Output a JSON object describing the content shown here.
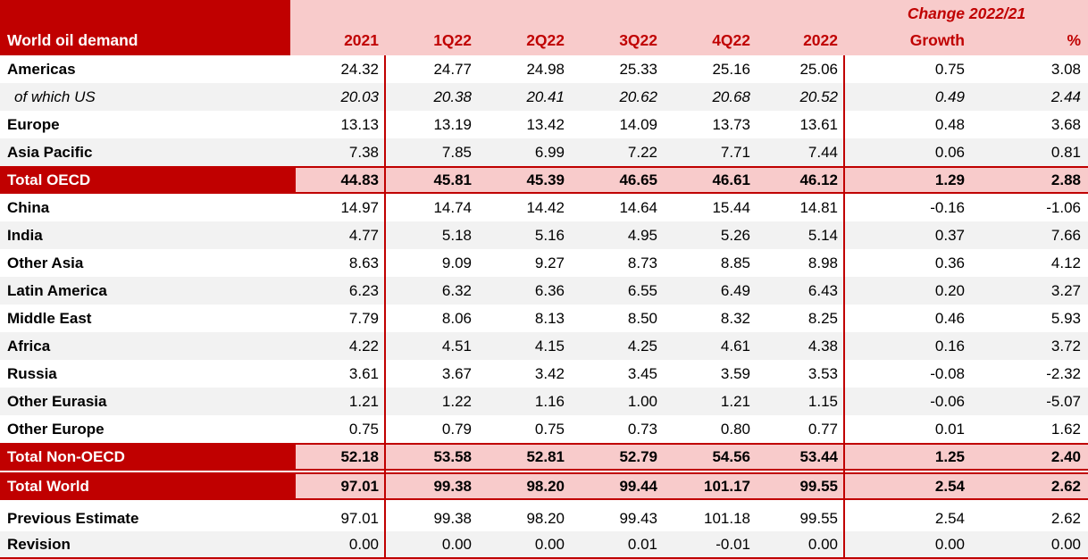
{
  "table": {
    "title": "World oil demand",
    "change_header": "Change 2022/21",
    "columns": [
      "2021",
      "1Q22",
      "2Q22",
      "3Q22",
      "4Q22",
      "2022",
      "Growth",
      "%"
    ],
    "rows": [
      {
        "label": "Americas",
        "style": "normal",
        "shaded": false,
        "values": [
          "24.32",
          "24.77",
          "24.98",
          "25.33",
          "25.16",
          "25.06",
          "0.75",
          "3.08"
        ]
      },
      {
        "label": "of which US",
        "style": "italic",
        "shaded": true,
        "values": [
          "20.03",
          "20.38",
          "20.41",
          "20.62",
          "20.68",
          "20.52",
          "0.49",
          "2.44"
        ]
      },
      {
        "label": "Europe",
        "style": "normal",
        "shaded": false,
        "values": [
          "13.13",
          "13.19",
          "13.42",
          "14.09",
          "13.73",
          "13.61",
          "0.48",
          "3.68"
        ]
      },
      {
        "label": "Asia Pacific",
        "style": "normal",
        "shaded": true,
        "values": [
          "7.38",
          "7.85",
          "6.99",
          "7.22",
          "7.71",
          "7.44",
          "0.06",
          "0.81"
        ]
      },
      {
        "label": "Total OECD",
        "style": "total",
        "shaded": false,
        "values": [
          "44.83",
          "45.81",
          "45.39",
          "46.65",
          "46.61",
          "46.12",
          "1.29",
          "2.88"
        ]
      },
      {
        "label": "China",
        "style": "normal",
        "shaded": false,
        "values": [
          "14.97",
          "14.74",
          "14.42",
          "14.64",
          "15.44",
          "14.81",
          "-0.16",
          "-1.06"
        ]
      },
      {
        "label": "India",
        "style": "normal",
        "shaded": true,
        "values": [
          "4.77",
          "5.18",
          "5.16",
          "4.95",
          "5.26",
          "5.14",
          "0.37",
          "7.66"
        ]
      },
      {
        "label": "Other Asia",
        "style": "normal",
        "shaded": false,
        "values": [
          "8.63",
          "9.09",
          "9.27",
          "8.73",
          "8.85",
          "8.98",
          "0.36",
          "4.12"
        ]
      },
      {
        "label": "Latin America",
        "style": "normal",
        "shaded": true,
        "values": [
          "6.23",
          "6.32",
          "6.36",
          "6.55",
          "6.49",
          "6.43",
          "0.20",
          "3.27"
        ]
      },
      {
        "label": "Middle East",
        "style": "normal",
        "shaded": false,
        "values": [
          "7.79",
          "8.06",
          "8.13",
          "8.50",
          "8.32",
          "8.25",
          "0.46",
          "5.93"
        ]
      },
      {
        "label": "Africa",
        "style": "normal",
        "shaded": true,
        "values": [
          "4.22",
          "4.51",
          "4.15",
          "4.25",
          "4.61",
          "4.38",
          "0.16",
          "3.72"
        ]
      },
      {
        "label": "Russia",
        "style": "normal",
        "shaded": false,
        "values": [
          "3.61",
          "3.67",
          "3.42",
          "3.45",
          "3.59",
          "3.53",
          "-0.08",
          "-2.32"
        ]
      },
      {
        "label": "Other Eurasia",
        "style": "normal",
        "shaded": true,
        "values": [
          "1.21",
          "1.22",
          "1.16",
          "1.00",
          "1.21",
          "1.15",
          "-0.06",
          "-5.07"
        ]
      },
      {
        "label": "Other Europe",
        "style": "normal",
        "shaded": false,
        "values": [
          "0.75",
          "0.79",
          "0.75",
          "0.73",
          "0.80",
          "0.77",
          "0.01",
          "1.62"
        ]
      },
      {
        "label": "Total Non-OECD",
        "style": "total",
        "shaded": false,
        "values": [
          "52.18",
          "53.58",
          "52.81",
          "52.79",
          "54.56",
          "53.44",
          "1.25",
          "2.40"
        ]
      },
      {
        "label": "Total World",
        "style": "total",
        "shaded": false,
        "values": [
          "97.01",
          "99.38",
          "98.20",
          "99.44",
          "101.17",
          "99.55",
          "2.54",
          "2.62"
        ]
      },
      {
        "label": "Previous Estimate",
        "style": "footer",
        "shaded": false,
        "values": [
          "97.01",
          "99.38",
          "98.20",
          "99.43",
          "101.18",
          "99.55",
          "2.54",
          "2.62"
        ]
      },
      {
        "label": "Revision",
        "style": "footer",
        "shaded": true,
        "values": [
          "0.00",
          "0.00",
          "0.00",
          "0.01",
          "-0.01",
          "0.00",
          "0.00",
          "0.00"
        ]
      }
    ],
    "colors": {
      "dark_red": "#C00000",
      "pink": "#F8CBCB",
      "stripe": "#F2F2F2",
      "text": "#000000",
      "header_text_on_red": "#FFFFFF"
    }
  }
}
